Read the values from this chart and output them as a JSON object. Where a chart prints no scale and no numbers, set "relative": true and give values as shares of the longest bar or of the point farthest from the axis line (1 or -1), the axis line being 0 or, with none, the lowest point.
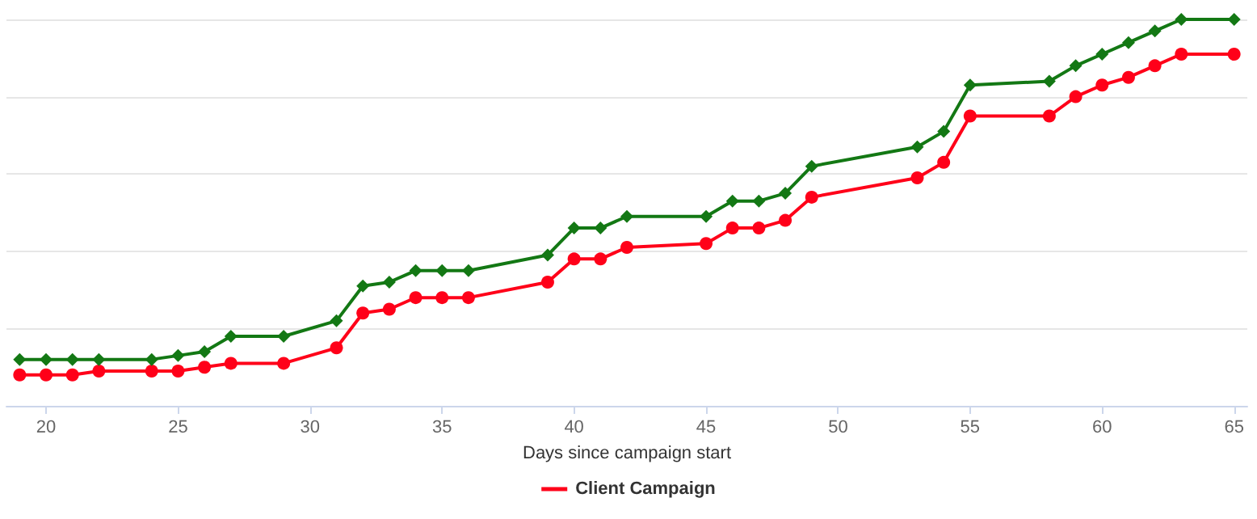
{
  "chart_data": {
    "type": "line",
    "xlabel": "Days since campaign start",
    "relative": true,
    "grid": "y",
    "legend": "bottom",
    "x": [
      19,
      20,
      21,
      22,
      24,
      25,
      26,
      27,
      29,
      31,
      32,
      33,
      34,
      35,
      36,
      39,
      40,
      41,
      42,
      45,
      46,
      47,
      48,
      49,
      53,
      54,
      55,
      58,
      59,
      60,
      61,
      62,
      63,
      65
    ],
    "xlim": [
      18.5,
      65.5
    ],
    "xticks": [
      20,
      25,
      30,
      35,
      40,
      45,
      50,
      55,
      60,
      65
    ],
    "series": [
      {
        "name": "Client Campaign",
        "color": "#ff0019",
        "marker": "circle",
        "values": [
          0.08,
          0.08,
          0.08,
          0.09,
          0.09,
          0.09,
          0.1,
          0.11,
          0.11,
          0.15,
          0.24,
          0.25,
          0.28,
          0.28,
          0.28,
          0.32,
          0.38,
          0.38,
          0.41,
          0.42,
          0.46,
          0.46,
          0.48,
          0.54,
          0.59,
          0.63,
          0.75,
          0.75,
          0.8,
          0.83,
          0.85,
          0.88,
          0.91,
          0.91
        ]
      },
      {
        "color": "#137814",
        "marker": "diamond",
        "values": [
          0.12,
          0.12,
          0.12,
          0.12,
          0.12,
          0.13,
          0.14,
          0.18,
          0.18,
          0.22,
          0.31,
          0.32,
          0.35,
          0.35,
          0.35,
          0.39,
          0.46,
          0.46,
          0.49,
          0.49,
          0.53,
          0.53,
          0.55,
          0.62,
          0.67,
          0.71,
          0.83,
          0.84,
          0.88,
          0.91,
          0.94,
          0.97,
          1,
          1
        ]
      }
    ]
  }
}
